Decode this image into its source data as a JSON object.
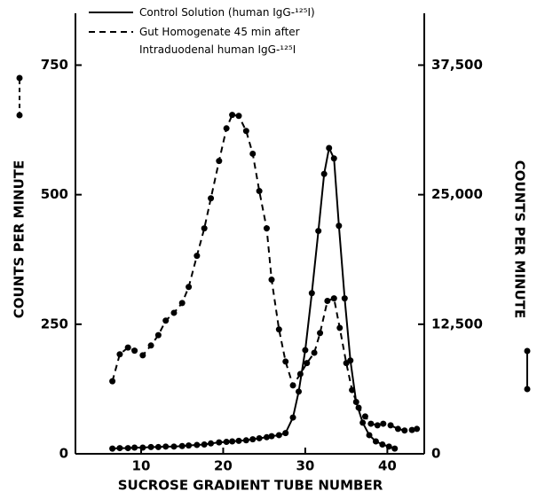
{
  "chart_data": {
    "type": "line",
    "xlabel": "SUCROSE GRADIENT TUBE NUMBER",
    "ylabel": "COUNTS PER MINUTE",
    "y2label": "COUNTS PER MINUTE",
    "xlim": [
      2,
      44.5
    ],
    "xticks": [
      10,
      20,
      30,
      40
    ],
    "ylim": [
      0,
      850
    ],
    "yticks": [
      0,
      250,
      500,
      750
    ],
    "y2lim": [
      0,
      42500
    ],
    "y2ticks": [
      0,
      {
        "value": 12500,
        "label": "12,500"
      },
      {
        "value": 25000,
        "label": "25,000"
      },
      {
        "value": 37500,
        "label": "37,500"
      }
    ],
    "series": [
      {
        "name": "Control Solution (human IgG-¹²⁵I)",
        "color": "#000000",
        "dash": false,
        "axis": "y2",
        "x": [
          6.5,
          7.4,
          8.4,
          9.2,
          10.2,
          11.2,
          12.1,
          13.0,
          14.0,
          15.0,
          15.8,
          16.8,
          17.7,
          18.5,
          19.5,
          20.4,
          21.1,
          21.9,
          22.8,
          23.6,
          24.4,
          25.3,
          25.9,
          26.8,
          27.6,
          28.5,
          29.2,
          30.0,
          30.8,
          31.6,
          32.3,
          32.9,
          33.5,
          34.1,
          34.8,
          35.5,
          36.2,
          37.0,
          37.8,
          38.6,
          39.4,
          40.2,
          40.9
        ],
        "values": [
          500,
          550,
          550,
          600,
          600,
          650,
          650,
          700,
          700,
          750,
          800,
          850,
          900,
          1000,
          1100,
          1150,
          1200,
          1250,
          1300,
          1400,
          1500,
          1600,
          1700,
          1800,
          2000,
          3500,
          6000,
          10000,
          15500,
          21500,
          27000,
          29500,
          28500,
          22000,
          15000,
          9000,
          5000,
          3000,
          1800,
          1200,
          900,
          700,
          500
        ]
      },
      {
        "name": "Gut Homogenate 45 min after Intraduodenal human IgG-¹²⁵I",
        "color": "#000000",
        "dash": true,
        "x": [
          6.5,
          7.4,
          8.4,
          9.2,
          10.2,
          11.2,
          12.1,
          13.0,
          14.0,
          15.0,
          15.8,
          16.8,
          17.7,
          18.5,
          19.5,
          20.4,
          21.1,
          21.9,
          22.8,
          23.6,
          24.4,
          25.3,
          25.9,
          26.8,
          27.6,
          28.5,
          29.4,
          30.2,
          31.1,
          31.8,
          32.7,
          33.5,
          34.2,
          35.0,
          35.7,
          36.5,
          37.3,
          38.0,
          38.8,
          39.5,
          40.4,
          41.3,
          42.1,
          43.0,
          43.6
        ],
        "values": [
          140,
          192,
          205,
          199,
          190,
          209,
          229,
          257,
          272,
          291,
          322,
          382,
          435,
          493,
          565,
          628,
          654,
          652,
          623,
          579,
          507,
          435,
          336,
          240,
          178,
          132,
          154,
          175,
          195,
          233,
          295,
          300,
          243,
          175,
          123,
          89,
          72,
          58,
          55,
          58,
          55,
          48,
          45,
          46,
          48
        ]
      }
    ]
  }
}
